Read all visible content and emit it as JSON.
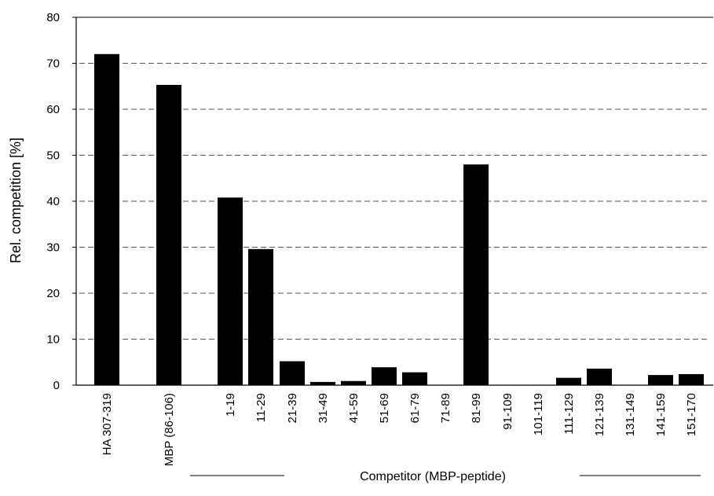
{
  "chart_data": {
    "type": "bar",
    "ylabel": "Rel. competition [%]",
    "group_label": "Competitor (MBP-peptide)",
    "ylim": [
      0,
      80
    ],
    "yticks": [
      "0",
      "10",
      "20",
      "30",
      "40",
      "50",
      "60",
      "70",
      "80"
    ],
    "grid": "dashed horizontal",
    "categories": [
      "HA 307-319",
      "MBP (86-106)",
      "1-19",
      "11-29",
      "21-39",
      "31-49",
      "41-59",
      "51-69",
      "61-79",
      "71-89",
      "81-99",
      "91-109",
      "101-119",
      "111-129",
      "121-139",
      "131-149",
      "141-159",
      "151-170"
    ],
    "values": [
      72,
      65.3,
      40.8,
      29.6,
      5.2,
      0.7,
      0.9,
      3.9,
      2.8,
      0,
      48,
      0,
      0,
      1.6,
      3.6,
      0,
      2.2,
      2.4
    ],
    "colors": {
      "bar": "#000000",
      "grid": "#555555",
      "axis": "#000000"
    }
  }
}
